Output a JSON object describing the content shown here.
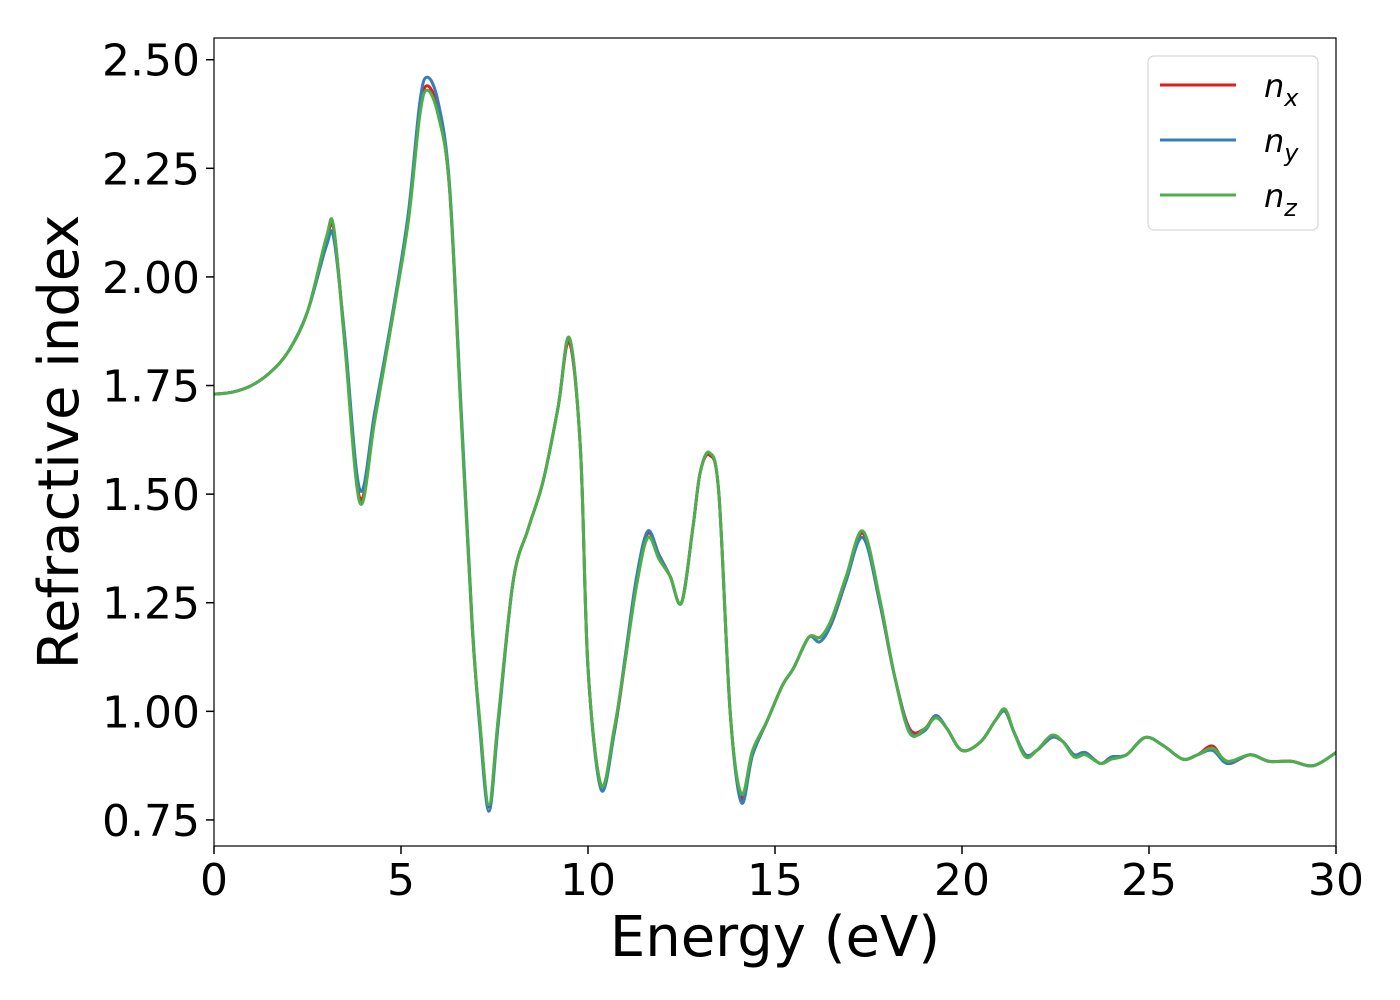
{
  "chart_data": {
    "type": "line",
    "xlabel": "Energy (eV)",
    "ylabel": "Refractive index",
    "xlim": [
      0,
      30
    ],
    "ylim": [
      0.69,
      2.55
    ],
    "xticks": [
      0,
      5,
      10,
      15,
      20,
      25,
      30
    ],
    "xtick_labels": [
      "0",
      "5",
      "10",
      "15",
      "20",
      "25",
      "30"
    ],
    "yticks": [
      0.75,
      1.0,
      1.25,
      1.5,
      1.75,
      2.0,
      2.25,
      2.5
    ],
    "ytick_labels": [
      "0.75",
      "1.00",
      "1.25",
      "1.50",
      "1.75",
      "2.00",
      "2.25",
      "2.50"
    ],
    "grid": false,
    "legend_position": "top-right",
    "series": [
      {
        "name": "n_x",
        "legend_base": "n",
        "legend_sub": "x",
        "color": "#e41a1c",
        "x": [
          0,
          0.5,
          1.0,
          1.5,
          2.0,
          2.5,
          3.0,
          3.2,
          3.5,
          3.9,
          4.3,
          4.8,
          5.2,
          5.5,
          5.7,
          6.0,
          6.3,
          6.6,
          6.9,
          7.1,
          7.35,
          7.6,
          8.0,
          8.4,
          8.8,
          9.2,
          9.5,
          9.8,
          10.0,
          10.35,
          10.7,
          11.0,
          11.3,
          11.6,
          11.9,
          12.2,
          12.5,
          12.8,
          13.0,
          13.25,
          13.5,
          13.8,
          14.1,
          14.4,
          14.8,
          15.2,
          15.5,
          15.9,
          16.2,
          16.5,
          16.9,
          17.35,
          17.8,
          18.2,
          18.6,
          19.0,
          19.3,
          19.6,
          20.0,
          20.5,
          20.9,
          21.15,
          21.4,
          21.7,
          22.0,
          22.4,
          22.7,
          23.0,
          23.3,
          23.7,
          24.0,
          24.4,
          24.9,
          25.4,
          25.9,
          26.3,
          26.7,
          27.1,
          27.7,
          28.2,
          28.8,
          29.4,
          30.0
        ],
        "values": [
          1.73,
          1.735,
          1.75,
          1.78,
          1.83,
          1.92,
          2.08,
          2.11,
          1.85,
          1.49,
          1.68,
          1.92,
          2.14,
          2.38,
          2.44,
          2.38,
          2.2,
          1.7,
          1.2,
          0.98,
          0.78,
          0.98,
          1.3,
          1.42,
          1.53,
          1.7,
          1.85,
          1.6,
          1.1,
          0.83,
          0.95,
          1.12,
          1.3,
          1.41,
          1.36,
          1.31,
          1.25,
          1.42,
          1.55,
          1.59,
          1.5,
          1.0,
          0.8,
          0.9,
          0.98,
          1.06,
          1.1,
          1.17,
          1.17,
          1.2,
          1.3,
          1.41,
          1.25,
          1.08,
          0.96,
          0.96,
          0.99,
          0.96,
          0.91,
          0.93,
          0.98,
          1.0,
          0.95,
          0.9,
          0.91,
          0.94,
          0.93,
          0.9,
          0.905,
          0.88,
          0.895,
          0.9,
          0.94,
          0.92,
          0.89,
          0.9,
          0.92,
          0.88,
          0.9,
          0.885,
          0.885,
          0.875,
          0.905
        ]
      },
      {
        "name": "n_y",
        "legend_base": "n",
        "legend_sub": "y",
        "color": "#377eb8",
        "x": [
          0,
          0.5,
          1.0,
          1.5,
          2.0,
          2.5,
          3.0,
          3.2,
          3.5,
          3.9,
          4.3,
          4.8,
          5.2,
          5.5,
          5.7,
          6.0,
          6.3,
          6.6,
          6.9,
          7.1,
          7.35,
          7.6,
          8.0,
          8.4,
          8.8,
          9.2,
          9.5,
          9.8,
          10.0,
          10.35,
          10.7,
          11.0,
          11.3,
          11.6,
          11.9,
          12.2,
          12.5,
          12.8,
          13.0,
          13.25,
          13.5,
          13.8,
          14.1,
          14.4,
          14.8,
          15.2,
          15.5,
          15.9,
          16.2,
          16.5,
          16.9,
          17.35,
          17.8,
          18.2,
          18.6,
          19.0,
          19.3,
          19.6,
          20.0,
          20.5,
          20.9,
          21.15,
          21.4,
          21.7,
          22.0,
          22.4,
          22.7,
          23.0,
          23.3,
          23.7,
          24.0,
          24.4,
          24.9,
          25.4,
          25.9,
          26.3,
          26.7,
          27.1,
          27.7,
          28.2,
          28.8,
          29.4,
          30.0
        ],
        "values": [
          1.73,
          1.735,
          1.75,
          1.78,
          1.83,
          1.92,
          2.07,
          2.09,
          1.86,
          1.51,
          1.69,
          1.93,
          2.15,
          2.4,
          2.46,
          2.4,
          2.21,
          1.71,
          1.21,
          0.97,
          0.77,
          0.97,
          1.3,
          1.42,
          1.53,
          1.7,
          1.86,
          1.6,
          1.1,
          0.82,
          0.95,
          1.13,
          1.31,
          1.415,
          1.36,
          1.31,
          1.25,
          1.42,
          1.55,
          1.595,
          1.5,
          1.0,
          0.79,
          0.9,
          0.98,
          1.06,
          1.1,
          1.17,
          1.16,
          1.2,
          1.3,
          1.4,
          1.25,
          1.08,
          0.955,
          0.955,
          0.99,
          0.96,
          0.91,
          0.93,
          0.98,
          1.0,
          0.95,
          0.9,
          0.91,
          0.94,
          0.93,
          0.9,
          0.905,
          0.88,
          0.895,
          0.9,
          0.94,
          0.92,
          0.89,
          0.9,
          0.91,
          0.88,
          0.9,
          0.885,
          0.885,
          0.875,
          0.905
        ]
      },
      {
        "name": "n_z",
        "legend_base": "n",
        "legend_sub": "z",
        "color": "#4daf4a",
        "x": [
          0,
          0.5,
          1.0,
          1.5,
          2.0,
          2.5,
          3.0,
          3.2,
          3.5,
          3.9,
          4.3,
          4.8,
          5.2,
          5.5,
          5.7,
          6.0,
          6.3,
          6.6,
          6.9,
          7.1,
          7.35,
          7.6,
          8.0,
          8.4,
          8.8,
          9.2,
          9.5,
          9.8,
          10.0,
          10.35,
          10.7,
          11.0,
          11.3,
          11.6,
          11.9,
          12.2,
          12.5,
          12.8,
          13.0,
          13.25,
          13.5,
          13.8,
          14.1,
          14.4,
          14.8,
          15.2,
          15.5,
          15.9,
          16.2,
          16.5,
          16.9,
          17.35,
          17.8,
          18.2,
          18.6,
          19.0,
          19.3,
          19.6,
          20.0,
          20.5,
          20.9,
          21.15,
          21.4,
          21.7,
          22.0,
          22.4,
          22.7,
          23.0,
          23.3,
          23.7,
          24.0,
          24.4,
          24.9,
          25.4,
          25.9,
          26.3,
          26.7,
          27.1,
          27.7,
          28.2,
          28.8,
          29.4,
          30.0
        ],
        "values": [
          1.73,
          1.735,
          1.75,
          1.78,
          1.83,
          1.92,
          2.09,
          2.115,
          1.84,
          1.48,
          1.67,
          1.92,
          2.13,
          2.37,
          2.43,
          2.37,
          2.2,
          1.69,
          1.2,
          0.985,
          0.785,
          0.985,
          1.3,
          1.42,
          1.53,
          1.7,
          1.86,
          1.6,
          1.1,
          0.83,
          0.96,
          1.12,
          1.29,
          1.4,
          1.35,
          1.31,
          1.25,
          1.42,
          1.55,
          1.595,
          1.5,
          1.0,
          0.81,
          0.91,
          0.98,
          1.06,
          1.1,
          1.17,
          1.17,
          1.21,
          1.31,
          1.415,
          1.26,
          1.08,
          0.95,
          0.96,
          0.985,
          0.96,
          0.91,
          0.93,
          0.98,
          1.005,
          0.95,
          0.895,
          0.91,
          0.945,
          0.93,
          0.895,
          0.9,
          0.88,
          0.89,
          0.9,
          0.94,
          0.92,
          0.89,
          0.9,
          0.915,
          0.885,
          0.9,
          0.885,
          0.885,
          0.875,
          0.905
        ]
      }
    ]
  }
}
